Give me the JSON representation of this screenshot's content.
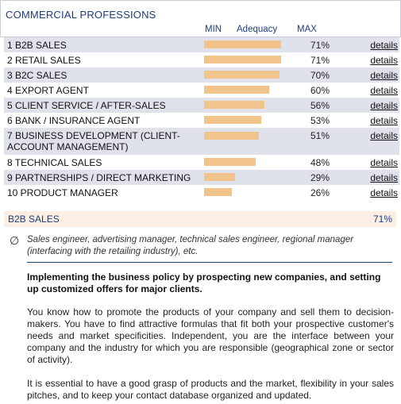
{
  "header": {
    "title": "COMMERCIAL PROFESSIONS",
    "col_min": "MIN",
    "col_adequacy": "Adequacy",
    "col_max": "MAX"
  },
  "details_label": "details",
  "bar_color": "#f0c48a",
  "professions": [
    {
      "rank_name": "1 B2B SALES",
      "pct": "71%",
      "value": 71
    },
    {
      "rank_name": "2 RETAIL SALES",
      "pct": "71%",
      "value": 71
    },
    {
      "rank_name": "3 B2C SALES",
      "pct": "70%",
      "value": 70
    },
    {
      "rank_name": "4 EXPORT AGENT",
      "pct": "60%",
      "value": 60
    },
    {
      "rank_name": "5 CLIENT SERVICE / AFTER-SALES",
      "pct": "56%",
      "value": 56
    },
    {
      "rank_name": "6 BANK / INSURANCE AGENT",
      "pct": "53%",
      "value": 53
    },
    {
      "rank_name": "7 BUSINESS DEVELOPMENT (CLIENT-ACCOUNT MANAGEMENT)",
      "pct": "51%",
      "value": 51
    },
    {
      "rank_name": "8 TECHNICAL SALES",
      "pct": "48%",
      "value": 48
    },
    {
      "rank_name": "9 PARTNERSHIPS / DIRECT MARKETING",
      "pct": "29%",
      "value": 29
    },
    {
      "rank_name": "10 PRODUCT MANAGER",
      "pct": "26%",
      "value": 26
    }
  ],
  "selected": {
    "name": "B2B SALES",
    "pct": "71%",
    "icon": "empty-set-icon",
    "related_jobs": "Sales engineer, advertising manager, technical sales engineer, regional manager (interfacing with the retailing industry), etc.",
    "lead": "Implementing the business policy by prospecting new companies, and setting up customized offers for major clients.",
    "paragraph1": "You know how to promote the products of your company and sell them to decision-makers. You have to find attractive formulas that fit both your prospective customer's needs and market specificities. Independent, you are the interface between your company and the industry for which you are responsible (geographical zone or sector of activity).",
    "paragraph2": "It is essential to have a good grasp of products and the market, flexibility in your sales pitches, and to keep your contact database organized and updated."
  }
}
